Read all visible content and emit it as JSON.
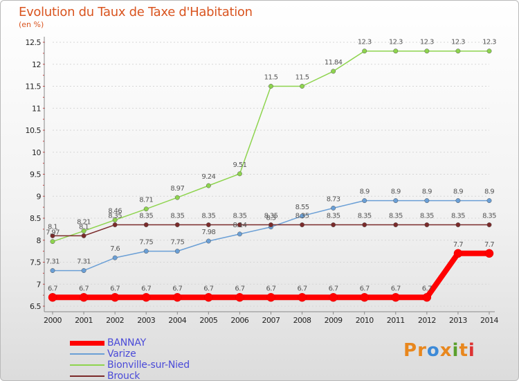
{
  "title": "Evolution du Taux de Taxe d'Habitation",
  "unit": "(en %)",
  "logo": {
    "text": "Proxiti",
    "letters": [
      "P",
      "r",
      "o",
      "x",
      "i",
      "t",
      "i"
    ],
    "colors": [
      "#e8871e",
      "#e8871e",
      "#3c8ad8",
      "#e8871e",
      "#5aa02c",
      "#e8871e",
      "#d33"
    ]
  },
  "chart_data": {
    "type": "line",
    "x": [
      "2000",
      "2001",
      "2002",
      "2003",
      "2004",
      "2005",
      "2006",
      "2007",
      "2008",
      "2009",
      "2010",
      "2011",
      "2012",
      "2013",
      "2014"
    ],
    "yticks": [
      "6.5",
      "7",
      "7.5",
      "8",
      "8.5",
      "9",
      "9.5",
      "10",
      "10.5",
      "11",
      "11.5",
      "12",
      "12.5"
    ],
    "ylim": [
      6.5,
      12.5
    ],
    "grid": "horizontal",
    "legend": "bottom-left",
    "series": [
      {
        "name": "BANNAY",
        "color": "#ff0000",
        "width": 8,
        "values": [
          6.7,
          6.7,
          6.7,
          6.7,
          6.7,
          6.7,
          6.7,
          6.7,
          6.7,
          6.7,
          6.7,
          6.7,
          6.7,
          7.7,
          7.7
        ],
        "labels": [
          "6.7",
          "6.7",
          "6.7",
          "6.7",
          "6.7",
          "6.7",
          "6.7",
          "6.7",
          "6.7",
          "6.7",
          "6.7",
          "6.7",
          "6.7",
          "7.7",
          "7.7"
        ]
      },
      {
        "name": "Varize",
        "color": "#6a9fd6",
        "width": 1.5,
        "values": [
          7.31,
          7.31,
          7.6,
          7.75,
          7.75,
          7.98,
          8.14,
          8.3,
          8.55,
          8.73,
          8.9,
          8.9,
          8.9,
          8.9,
          8.9
        ],
        "labels": [
          "7.31",
          "7.31",
          "7.6",
          "7.75",
          "7.75",
          "7.98",
          "8.14",
          "8.3",
          "8.55",
          "8.73",
          "8.9",
          "8.9",
          "8.9",
          "8.9",
          "8.9"
        ]
      },
      {
        "name": "Bionville-sur-Nied",
        "color": "#8ed44e",
        "width": 1.5,
        "values": [
          7.97,
          8.21,
          8.46,
          8.71,
          8.97,
          9.24,
          9.51,
          11.5,
          11.5,
          11.84,
          12.3,
          12.3,
          12.3,
          12.3,
          12.3
        ],
        "labels": [
          "7.97",
          "8.21",
          "8.46",
          "8.71",
          "8.97",
          "9.24",
          "9.51",
          "11.5",
          "11.5",
          "11.84",
          "12.3",
          "12.3",
          "12.3",
          "12.3",
          "12.3"
        ]
      },
      {
        "name": "Brouck",
        "color": "#7a2a2a",
        "width": 1.5,
        "values": [
          8.1,
          8.1,
          8.35,
          8.35,
          8.35,
          8.35,
          8.35,
          8.35,
          8.35,
          8.35,
          8.35,
          8.35,
          8.35,
          8.35,
          8.35
        ],
        "labels": [
          "8.1",
          "8.1",
          "8.35",
          "8.35",
          "8.35",
          "8.35",
          "8.35",
          "8.35",
          "8.35",
          "8.35",
          "8.35",
          "8.35",
          "8.35",
          "8.35",
          "8.35"
        ]
      }
    ]
  }
}
